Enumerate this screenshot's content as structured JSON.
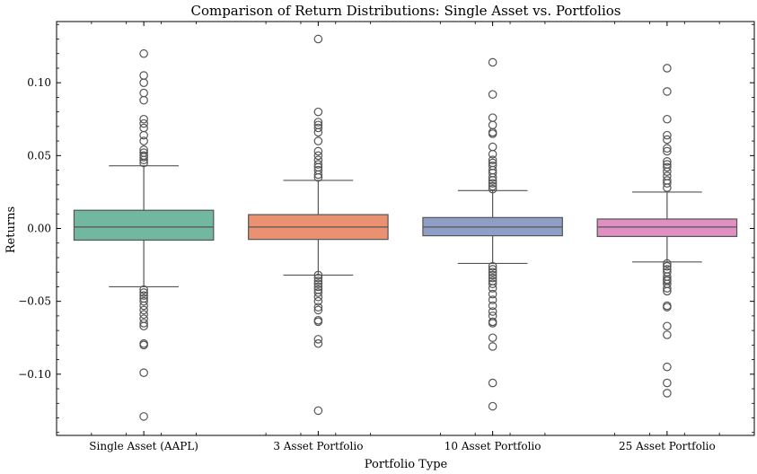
{
  "chart_data": {
    "type": "box",
    "title": "Comparison of Return Distributions: Single Asset vs. Portfolios",
    "xlabel": "Portfolio Type",
    "ylabel": "Returns",
    "ylim": [
      -0.142,
      0.142
    ],
    "yticks": [
      0.1,
      0.05,
      0.0,
      -0.05,
      -0.1
    ],
    "ytick_labels": [
      "0.10",
      "0.05",
      "0.00",
      "−0.05",
      "−0.10"
    ],
    "grid": false,
    "legend": "none",
    "categories": [
      "Single Asset (AAPL)",
      "3 Asset Portfolio",
      "10 Asset Portfolio",
      "25 Asset Portfolio"
    ],
    "series": [
      {
        "color": "#72b7a0",
        "q1": -0.008,
        "median": 0.001,
        "q3": 0.0125,
        "whisker_low": -0.04,
        "whisker_high": 0.043,
        "outliers": [
          0.12,
          0.105,
          0.1,
          0.093,
          0.088,
          0.075,
          0.072,
          0.069,
          0.064,
          0.06,
          0.054,
          0.052,
          0.05,
          0.049,
          0.047,
          0.045,
          -0.042,
          -0.044,
          -0.046,
          -0.048,
          -0.05,
          -0.053,
          -0.056,
          -0.059,
          -0.062,
          -0.065,
          -0.067,
          -0.079,
          -0.08,
          -0.099,
          -0.129
        ]
      },
      {
        "color": "#e99170",
        "q1": -0.0075,
        "median": 0.001,
        "q3": 0.0095,
        "whisker_low": -0.032,
        "whisker_high": 0.033,
        "outliers": [
          0.13,
          0.08,
          0.073,
          0.071,
          0.069,
          0.066,
          0.06,
          0.053,
          0.05,
          0.047,
          0.044,
          0.042,
          0.04,
          0.037,
          0.035,
          -0.032,
          -0.034,
          -0.036,
          -0.038,
          -0.04,
          -0.042,
          -0.044,
          -0.047,
          -0.05,
          -0.054,
          -0.056,
          -0.063,
          -0.064,
          -0.076,
          -0.079,
          -0.125
        ]
      },
      {
        "color": "#8e9ec6",
        "q1": -0.005,
        "median": 0.001,
        "q3": 0.0075,
        "whisker_low": -0.024,
        "whisker_high": 0.026,
        "outliers": [
          0.114,
          0.092,
          0.076,
          0.071,
          0.066,
          0.065,
          0.056,
          0.051,
          0.047,
          0.045,
          0.043,
          0.04,
          0.038,
          0.035,
          0.033,
          0.031,
          0.029,
          0.027,
          -0.026,
          -0.028,
          -0.03,
          -0.032,
          -0.034,
          -0.036,
          -0.038,
          -0.041,
          -0.045,
          -0.049,
          -0.053,
          -0.057,
          -0.06,
          -0.064,
          -0.065,
          -0.075,
          -0.081,
          -0.106,
          -0.122
        ]
      },
      {
        "color": "#df8fc2",
        "q1": -0.0055,
        "median": 0.001,
        "q3": 0.0065,
        "whisker_low": -0.023,
        "whisker_high": 0.025,
        "outliers": [
          0.11,
          0.094,
          0.075,
          0.064,
          0.061,
          0.055,
          0.053,
          0.046,
          0.044,
          0.042,
          0.039,
          0.036,
          0.033,
          0.031,
          0.028,
          -0.024,
          -0.026,
          -0.028,
          -0.03,
          -0.033,
          -0.035,
          -0.036,
          -0.038,
          -0.041,
          -0.043,
          -0.053,
          -0.054,
          -0.067,
          -0.073,
          -0.095,
          -0.106,
          -0.113
        ]
      }
    ]
  }
}
